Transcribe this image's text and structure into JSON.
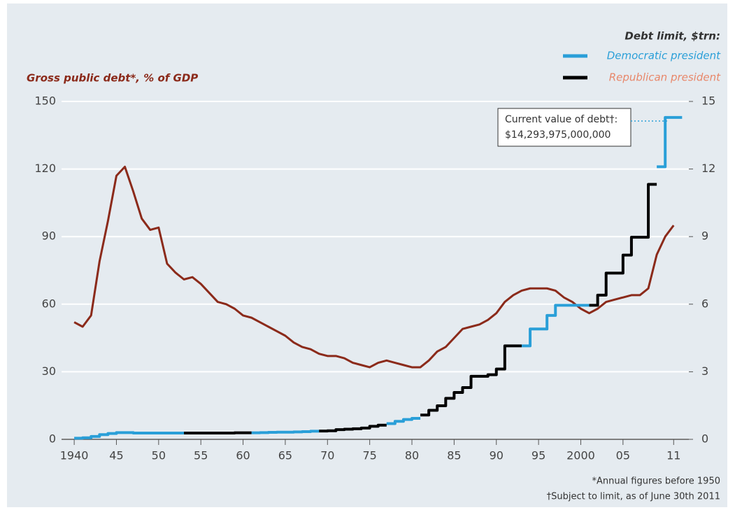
{
  "chart_data": {
    "type": "line",
    "y_label": "Gross public debt*, % of GDP",
    "legend_title": "Debt limit, $trn:",
    "annotation": [
      "Current value of debt†:",
      "$14,293,975,000,000"
    ],
    "footnotes": [
      "*Annual figures before 1950",
      "†Subject to limit, as of June 30th 2011"
    ],
    "grid": true,
    "x": [
      1940,
      1941,
      1942,
      1943,
      1944,
      1945,
      1946,
      1947,
      1948,
      1949,
      1950,
      1951,
      1952,
      1953,
      1954,
      1955,
      1956,
      1957,
      1958,
      1959,
      1960,
      1961,
      1962,
      1963,
      1964,
      1965,
      1966,
      1967,
      1968,
      1969,
      1970,
      1971,
      1972,
      1973,
      1974,
      1975,
      1976,
      1977,
      1978,
      1979,
      1980,
      1981,
      1982,
      1983,
      1984,
      1985,
      1986,
      1987,
      1988,
      1989,
      1990,
      1991,
      1992,
      1993,
      1994,
      1995,
      1996,
      1997,
      1998,
      1999,
      2000,
      2001,
      2002,
      2003,
      2004,
      2005,
      2006,
      2007,
      2008,
      2009,
      2010,
      2011
    ],
    "xlim": [
      1938.5,
      2012.8
    ],
    "xticks": [
      1940,
      {
        "value": 1945,
        "label": "45"
      },
      {
        "value": 1950,
        "label": "50"
      },
      {
        "value": 1955,
        "label": "55"
      },
      {
        "value": 1960,
        "label": "60"
      },
      {
        "value": 1965,
        "label": "65"
      },
      {
        "value": 1970,
        "label": "70"
      },
      {
        "value": 1975,
        "label": "75"
      },
      {
        "value": 1980,
        "label": "80"
      },
      {
        "value": 1985,
        "label": "85"
      },
      {
        "value": 1990,
        "label": "90"
      },
      {
        "value": 1995,
        "label": "95"
      },
      2000,
      {
        "value": 2005,
        "label": "05"
      },
      {
        "value": 2011,
        "label": "11"
      }
    ],
    "ylim": [
      0,
      150
    ],
    "yticks": [
      0,
      30,
      60,
      90,
      120,
      150
    ],
    "y2lim": [
      0,
      15
    ],
    "y2ticks": [
      0,
      3,
      6,
      9,
      12,
      15
    ],
    "series": [
      {
        "name": "Gross public debt",
        "color": "#8b2a1a",
        "values": [
          52,
          50,
          55,
          79,
          97,
          117,
          121,
          110,
          98,
          93,
          94,
          78,
          74,
          71,
          72,
          69,
          65,
          61,
          60,
          58,
          55,
          54,
          52,
          50,
          48,
          46,
          43,
          41,
          40,
          38,
          37,
          37,
          36,
          34,
          33,
          32,
          34,
          35,
          34,
          33,
          32,
          32,
          35,
          39,
          41,
          45,
          49,
          50,
          51,
          53,
          56,
          61,
          64,
          66,
          67,
          67,
          67,
          66,
          63,
          61,
          58,
          56,
          58,
          61,
          62,
          63,
          64,
          64,
          67,
          82,
          90,
          95
        ]
      },
      {
        "name": "Democratic president",
        "color": "#2a9fd8",
        "axis": "y2",
        "values": [
          0.05,
          0.07,
          0.13,
          0.21,
          0.26,
          0.3,
          0.3,
          0.28,
          0.28,
          0.28,
          0.28,
          0.28,
          0.28,
          null,
          null,
          null,
          null,
          null,
          null,
          null,
          null,
          0.29,
          0.3,
          0.31,
          0.32,
          0.32,
          0.33,
          0.34,
          0.36,
          null,
          null,
          null,
          null,
          null,
          null,
          null,
          null,
          0.7,
          0.8,
          0.88,
          0.93,
          null,
          null,
          null,
          null,
          null,
          null,
          null,
          null,
          null,
          null,
          null,
          null,
          4.15,
          4.9,
          4.9,
          5.5,
          5.95,
          5.95,
          5.95,
          5.95,
          null,
          null,
          null,
          null,
          null,
          null,
          null,
          null,
          12.1,
          14.29,
          14.29
        ]
      },
      {
        "name": "Republican president",
        "color": "#000000",
        "text_color": "#e8876a",
        "axis": "y2",
        "values": [
          null,
          null,
          null,
          null,
          null,
          null,
          null,
          null,
          null,
          null,
          null,
          null,
          null,
          0.28,
          0.28,
          0.28,
          0.28,
          0.28,
          0.28,
          0.29,
          0.29,
          null,
          null,
          null,
          null,
          null,
          null,
          null,
          null,
          0.37,
          0.38,
          0.43,
          0.45,
          0.47,
          0.5,
          0.58,
          0.63,
          null,
          null,
          null,
          null,
          1.08,
          1.29,
          1.49,
          1.82,
          2.08,
          2.3,
          2.8,
          2.8,
          2.87,
          3.12,
          4.15,
          4.15,
          null,
          null,
          null,
          null,
          null,
          null,
          null,
          null,
          5.95,
          6.4,
          7.38,
          7.38,
          8.18,
          8.97,
          8.97,
          11.32,
          null,
          null,
          null
        ]
      }
    ]
  }
}
